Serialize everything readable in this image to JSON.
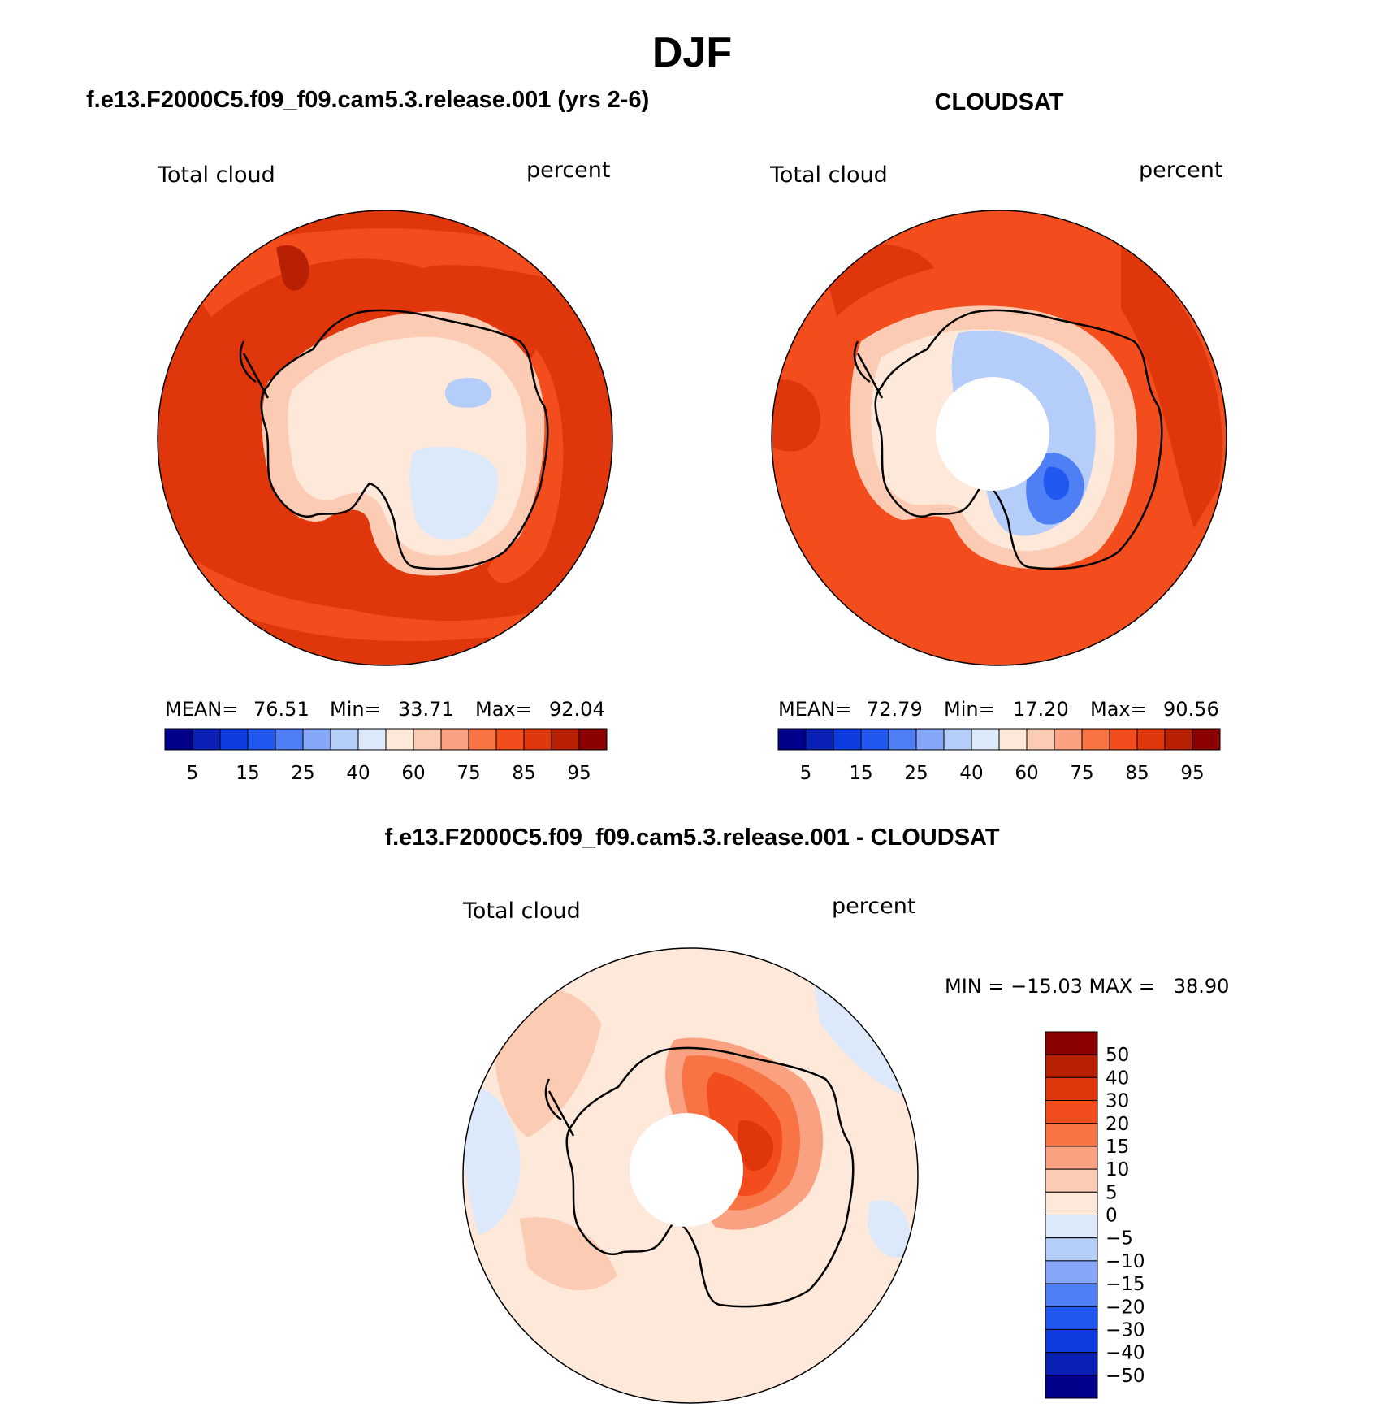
{
  "figure_title": "DJF",
  "panels": [
    {
      "id": "model",
      "title": "f.e13.F2000C5.f09_f09.cam5.3.release.001 (yrs 2-6)",
      "left_label": "Total cloud",
      "right_label": "percent",
      "stats": {
        "mean_label": "MEAN=",
        "mean_value": "76.51",
        "min_label": "Min=",
        "min_value": "33.71",
        "max_label": "Max=",
        "max_value": "92.04"
      },
      "colorbar": {
        "colors": [
          "#00008b",
          "#0a1fb4",
          "#0d3de0",
          "#2158f0",
          "#4f7ff5",
          "#86a6f8",
          "#b5cdf9",
          "#dbe9fb",
          "#fde8da",
          "#fccbb3",
          "#f9a180",
          "#f87444",
          "#f34c1d",
          "#e0360c",
          "#b82004",
          "#8b0000"
        ],
        "tick_labels": [
          "5",
          "15",
          "25",
          "40",
          "60",
          "75",
          "85",
          "95"
        ]
      }
    },
    {
      "id": "obs",
      "title": "CLOUDSAT",
      "left_label": "Total cloud",
      "right_label": "percent",
      "stats": {
        "mean_label": "MEAN=",
        "mean_value": "72.79",
        "min_label": "Min=",
        "min_value": "17.20",
        "max_label": "Max=",
        "max_value": "90.56"
      },
      "colorbar": {
        "colors": [
          "#00008b",
          "#0a1fb4",
          "#0d3de0",
          "#2158f0",
          "#4f7ff5",
          "#86a6f8",
          "#b5cdf9",
          "#dbe9fb",
          "#fde8da",
          "#fccbb3",
          "#f9a180",
          "#f87444",
          "#f34c1d",
          "#e0360c",
          "#b82004",
          "#8b0000"
        ],
        "tick_labels": [
          "5",
          "15",
          "25",
          "40",
          "60",
          "75",
          "85",
          "95"
        ]
      }
    },
    {
      "id": "diff",
      "title": "f.e13.F2000C5.f09_f09.cam5.3.release.001 - CLOUDSAT",
      "left_label": "Total cloud",
      "right_label": "percent",
      "stats": {
        "text": "MIN = −15.03 MAX =   38.90"
      },
      "colorbar": {
        "colors_top_to_bottom": [
          "#8b0000",
          "#b82004",
          "#e0360c",
          "#f34c1d",
          "#f87444",
          "#f9a180",
          "#fccbb3",
          "#fde8da",
          "#dbe9fb",
          "#b5cdf9",
          "#86a6f8",
          "#4f7ff5",
          "#2158f0",
          "#0d3de0",
          "#0a1fb4",
          "#00008b"
        ],
        "tick_labels": [
          "50",
          "40",
          "30",
          "20",
          "15",
          "10",
          "5",
          "0",
          "−5",
          "−10",
          "−15",
          "−20",
          "−30",
          "−40",
          "−50"
        ]
      }
    }
  ]
}
